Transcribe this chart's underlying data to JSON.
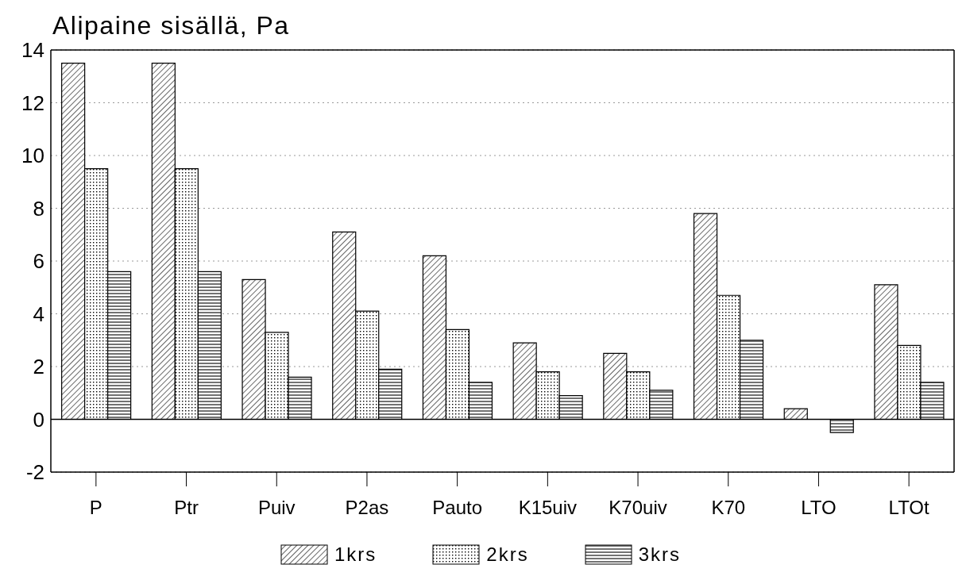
{
  "chart_data": {
    "type": "bar",
    "title": "Alipaine sisällä, Pa",
    "categories": [
      "P",
      "Ptr",
      "Puiv",
      "P2as",
      "Pauto",
      "K15uiv",
      "K70uiv",
      "K70",
      "LTO",
      "LTOt"
    ],
    "series": [
      {
        "name": "1krs",
        "color": "#000000",
        "values": [
          13.5,
          13.5,
          5.3,
          7.1,
          6.2,
          2.9,
          2.5,
          7.8,
          0.4,
          5.1
        ]
      },
      {
        "name": "2krs",
        "color": "#000000",
        "values": [
          9.5,
          9.5,
          3.3,
          4.1,
          3.4,
          1.8,
          1.8,
          4.7,
          0,
          2.8
        ]
      },
      {
        "name": "3krs",
        "color": "#000000",
        "values": [
          5.6,
          5.6,
          1.6,
          1.9,
          1.4,
          0.9,
          1.1,
          3.0,
          -0.5,
          1.4
        ]
      }
    ],
    "ylim": [
      -2,
      14
    ],
    "yticks": [
      -2,
      0,
      2,
      4,
      6,
      8,
      10,
      12,
      14
    ],
    "grid": "y",
    "legend": "bottom"
  }
}
